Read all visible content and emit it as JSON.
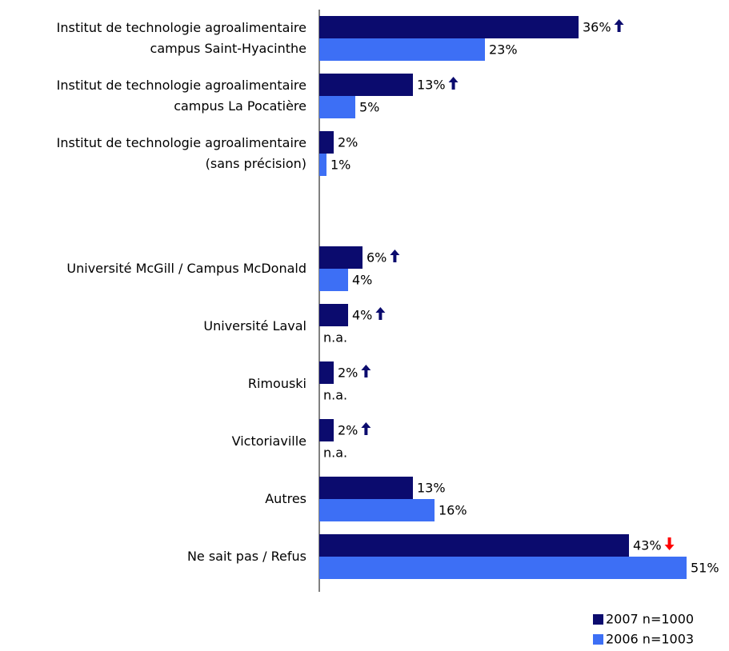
{
  "chart_data": {
    "type": "bar",
    "orientation": "horizontal",
    "categories": [
      "Institut de technologie agroalimentaire\ncampus Saint-Hyacinthe",
      "Institut de technologie agroalimentaire\ncampus La Pocatière",
      "Institut de technologie agroalimentaire\n(sans précision)",
      null,
      "Université McGill / Campus McDonald",
      "Université Laval",
      "Rimouski",
      "Victoriaville",
      "Autres",
      "Ne sait pas / Refus"
    ],
    "series": [
      {
        "name": "2007 n=1000",
        "color": "#0b0b6e",
        "values": [
          36,
          13,
          2,
          null,
          6,
          4,
          2,
          2,
          13,
          43
        ],
        "value_labels": [
          "36%",
          "13%",
          "2%",
          null,
          "6%",
          "4%",
          "2%",
          "2%",
          "13%",
          "43%"
        ]
      },
      {
        "name": "2006 n=1003",
        "color": "#3d6ff5",
        "values": [
          23,
          5,
          1,
          null,
          4,
          null,
          null,
          null,
          16,
          51
        ],
        "value_labels": [
          "23%",
          "5%",
          "1%",
          null,
          "4%",
          "n.a.",
          "n.a.",
          "n.a.",
          "16%",
          "51%"
        ]
      }
    ],
    "xlim": [
      0,
      50
    ],
    "legend": "bottom-right"
  }
}
